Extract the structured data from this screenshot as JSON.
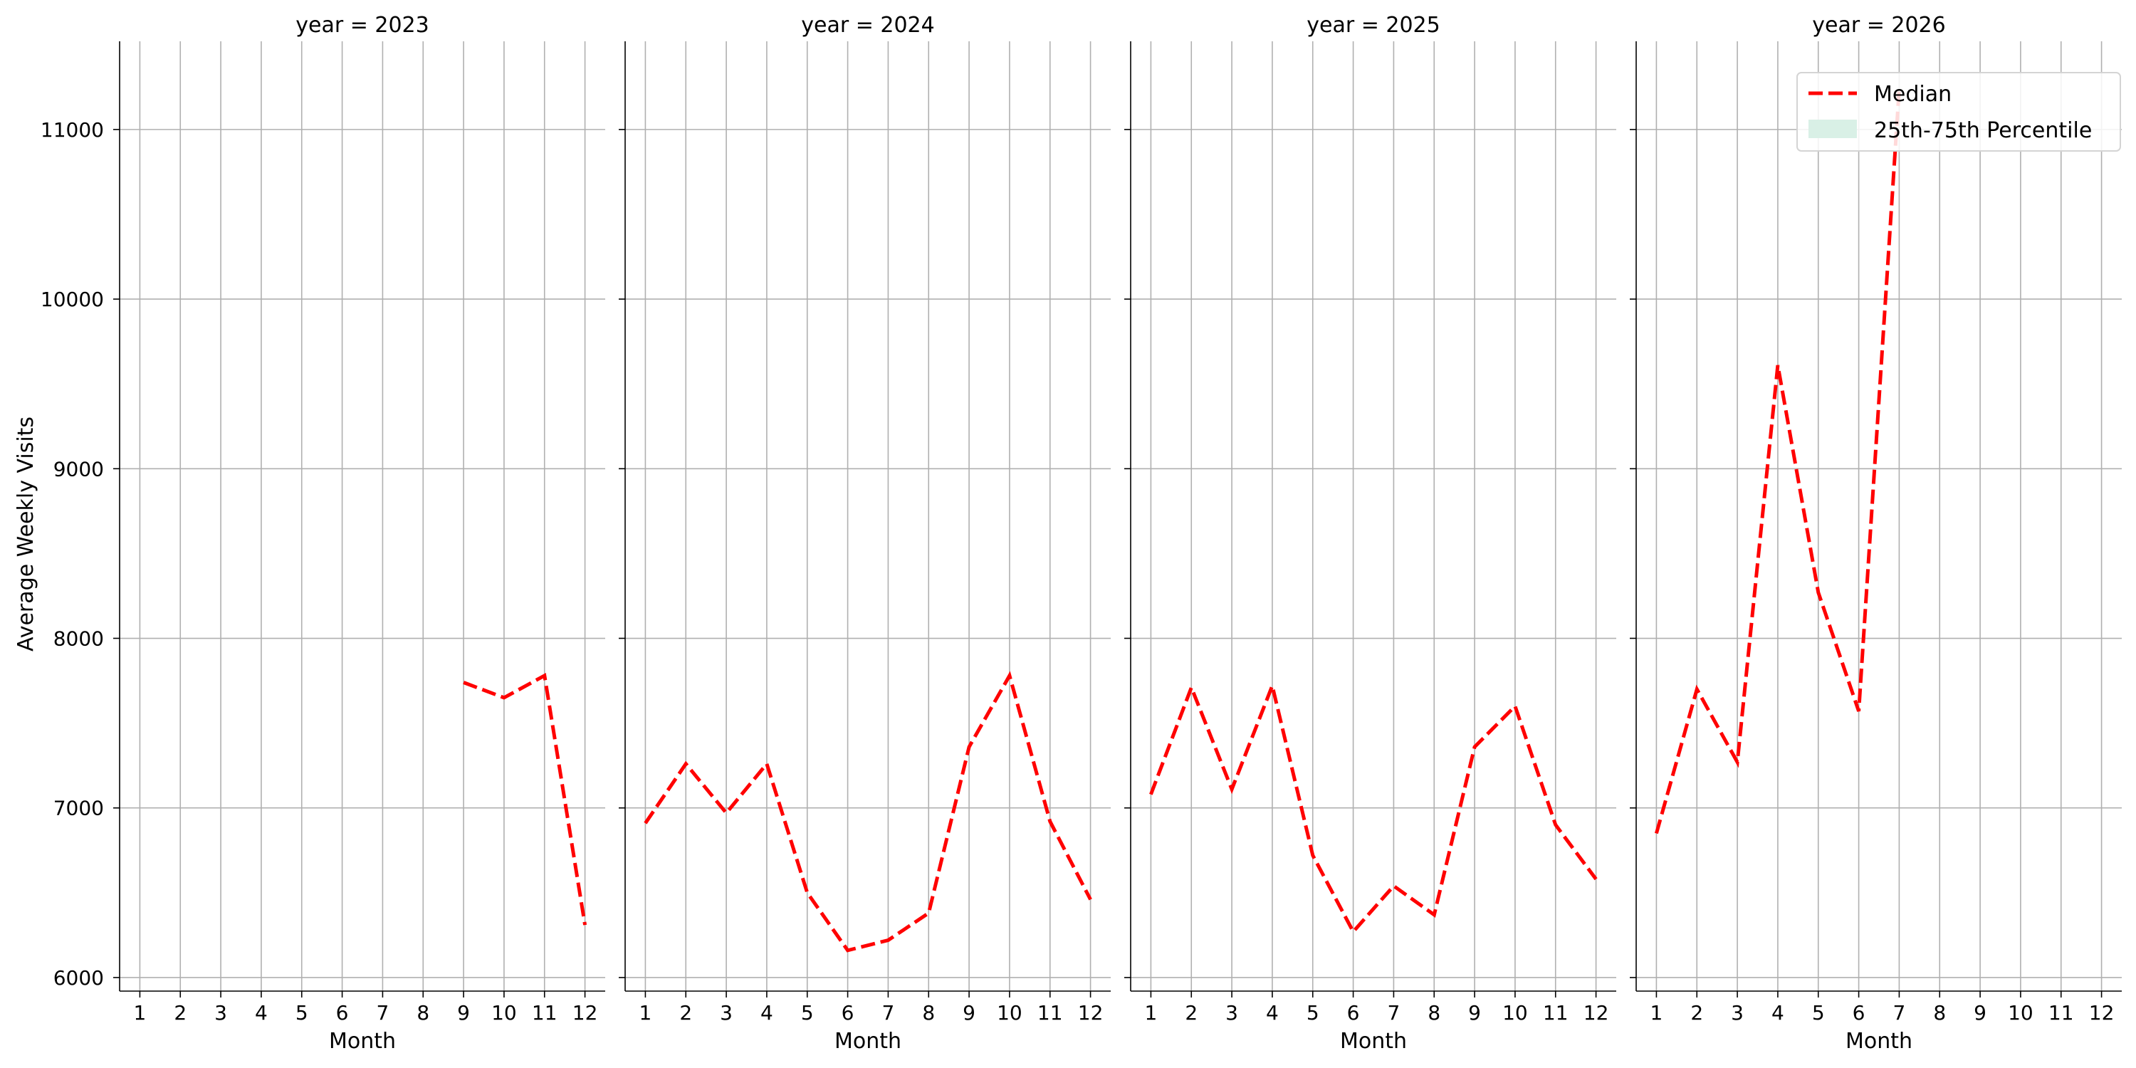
{
  "chart_data": {
    "type": "line",
    "ylabel": "Average Weekly Visits",
    "xlabel": "Month",
    "x": [
      1,
      2,
      3,
      4,
      5,
      6,
      7,
      8,
      9,
      10,
      11,
      12
    ],
    "yticks": [
      6000,
      7000,
      8000,
      9000,
      10000,
      11000
    ],
    "ylim": [
      5920,
      11520
    ],
    "xlim": [
      0.5,
      12.5
    ],
    "grid": true,
    "legend": {
      "placement": "top-right",
      "entries": [
        "Median",
        "25th-75th Percentile"
      ]
    },
    "colors": {
      "median": "#ff0000",
      "percentile_band": "#d9f0e6"
    },
    "panels": [
      {
        "title": "year = 2023",
        "median": [
          null,
          null,
          null,
          null,
          null,
          null,
          null,
          null,
          7740,
          7650,
          7780,
          6310
        ]
      },
      {
        "title": "year = 2024",
        "median": [
          6910,
          7260,
          6970,
          7260,
          6500,
          6160,
          6220,
          6380,
          7360,
          7780,
          6920,
          6460
        ]
      },
      {
        "title": "year = 2025",
        "median": [
          7080,
          7710,
          7110,
          7720,
          6720,
          6270,
          6540,
          6370,
          7360,
          7600,
          6900,
          6580
        ]
      },
      {
        "title": "year = 2026",
        "median": [
          6850,
          7700,
          7270,
          9610,
          8270,
          7570,
          11240,
          null,
          null,
          null,
          null,
          null
        ]
      }
    ]
  }
}
